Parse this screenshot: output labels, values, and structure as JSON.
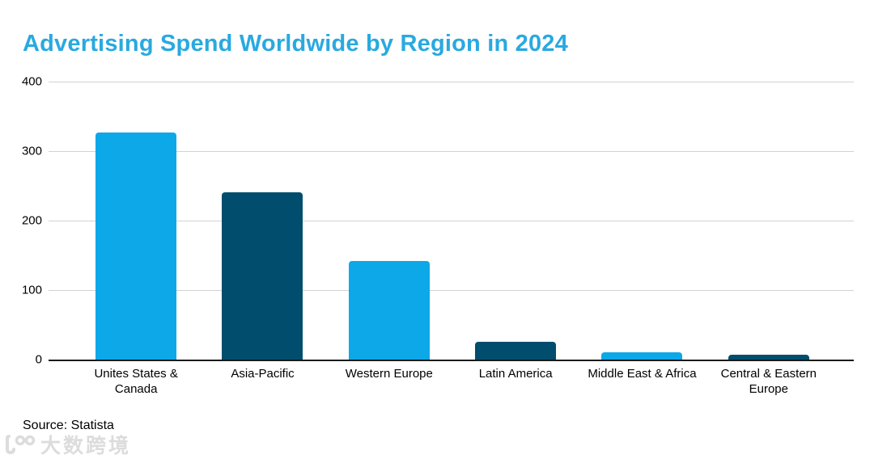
{
  "title": "Advertising Spend Worldwide by Region in 2024",
  "title_color": "#29A9E0",
  "source_note": "Source: Statista",
  "watermark_text": "大数跨境",
  "colors": {
    "bar_light_blue": "#0DA8E8",
    "bar_dark_teal": "#004D6E",
    "gridline": "#d2d2d2",
    "axis": "#1a1a1a",
    "watermark_gray": "#dcdcdc"
  },
  "chart_data": {
    "type": "bar",
    "title": "Advertising Spend Worldwide by Region in 2024",
    "categories": [
      "Unites States &\nCanada",
      "Asia-Pacific",
      "Western Europe",
      "Latin America",
      "Middle East & Africa",
      "Central & Eastern\nEurope"
    ],
    "values": [
      327,
      241,
      142,
      26,
      10,
      7
    ],
    "bar_colors": [
      "#0DA8E8",
      "#004D6E",
      "#0DA8E8",
      "#004D6E",
      "#0DA8E8",
      "#004D6E"
    ],
    "xlabel": "",
    "ylabel": "",
    "yticks": [
      0,
      100,
      200,
      300,
      400
    ],
    "ylim": [
      0,
      400
    ],
    "grid": true,
    "legend": "none"
  }
}
